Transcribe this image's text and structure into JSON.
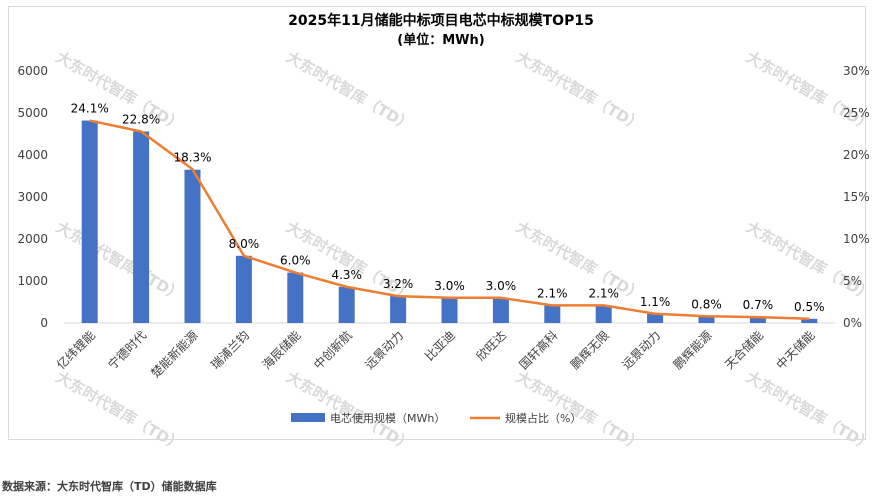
{
  "chart_data": {
    "type": "bar+line",
    "title": "2025年11月储能中标项目电芯中标规模TOP15",
    "subtitle": "(单位：MWh)",
    "categories": [
      "亿纬锂能",
      "宁德时代",
      "楚能新能源",
      "瑞浦兰钧",
      "海辰储能",
      "中创新航",
      "远景动力",
      "比亚迪",
      "欣旺达",
      "国轩高科",
      "鹏辉无限",
      "远景动力",
      "鹏辉能源",
      "天合储能",
      "中天储能"
    ],
    "series": [
      {
        "name": "电芯使用规模（MWh）",
        "type": "bar",
        "axis": "left",
        "color": "#4472c4",
        "values": [
          4820,
          4560,
          3650,
          1600,
          1200,
          860,
          640,
          600,
          600,
          420,
          420,
          220,
          160,
          140,
          100
        ]
      },
      {
        "name": "规模占比（%）",
        "type": "line",
        "axis": "right",
        "color": "#ed7d31",
        "values": [
          24.1,
          22.8,
          18.3,
          8.0,
          6.0,
          4.3,
          3.2,
          3.0,
          3.0,
          2.1,
          2.1,
          1.1,
          0.8,
          0.7,
          0.5
        ]
      }
    ],
    "data_labels": [
      "24.1%",
      "22.8%",
      "18.3%",
      "8.0%",
      "6.0%",
      "4.3%",
      "3.2%",
      "3.0%",
      "3.0%",
      "2.1%",
      "2.1%",
      "1.1%",
      "0.8%",
      "0.7%",
      "0.5%"
    ],
    "y_left": {
      "min": 0,
      "max": 6000,
      "ticks": [
        "0",
        "1000",
        "2000",
        "3000",
        "4000",
        "5000",
        "6000"
      ]
    },
    "y_right": {
      "min": 0,
      "max": 30,
      "ticks": [
        "0%",
        "5%",
        "10%",
        "15%",
        "20%",
        "25%",
        "30%"
      ]
    },
    "legend_position": "bottom",
    "grid": false
  },
  "watermark": "大东时代智库（TD）",
  "source": "数据来源：大东时代智库（TD）储能数据库"
}
